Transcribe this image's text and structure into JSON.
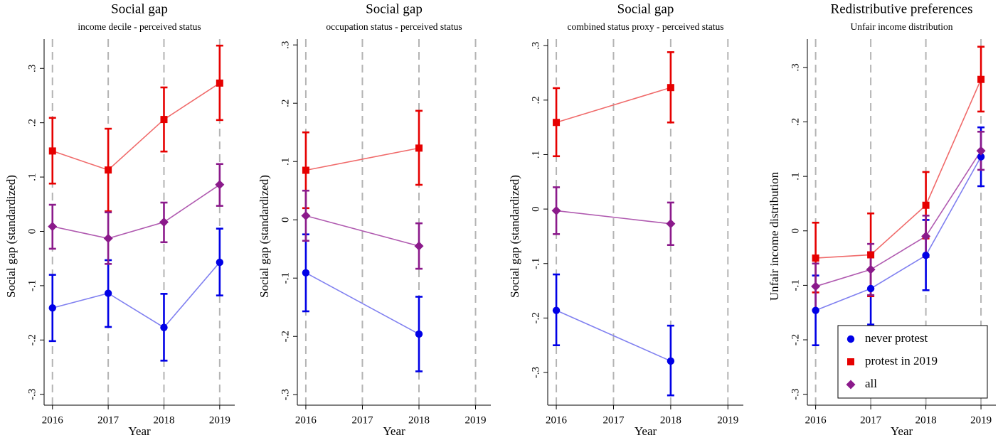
{
  "chart_data": [
    {
      "type": "line",
      "title": "Social gap",
      "subtitle": "income decile - perceived status",
      "x_label": "Year",
      "y_label": "Social gap (standardized)",
      "x": [
        2016,
        2017,
        2018,
        2019
      ],
      "series": [
        {
          "color": "#0000e6",
          "line_color": "#8080f0",
          "marker": "circle",
          "values": [
            -0.141,
            -0.114,
            -0.177,
            -0.057
          ],
          "lower": [
            -0.202,
            -0.176,
            -0.238,
            -0.118
          ],
          "upper": [
            -0.08,
            -0.053,
            -0.115,
            0.005
          ]
        },
        {
          "color": "#e60000",
          "line_color": "#f06a6a",
          "marker": "square",
          "values": [
            0.148,
            0.113,
            0.206,
            0.273
          ],
          "lower": [
            0.088,
            0.037,
            0.147,
            0.205
          ],
          "upper": [
            0.209,
            0.189,
            0.265,
            0.342
          ]
        },
        {
          "color": "#8b1a8b",
          "line_color": "#b05ab0",
          "marker": "diamond",
          "values": [
            0.009,
            -0.013,
            0.017,
            0.086
          ],
          "lower": [
            -0.032,
            -0.06,
            -0.02,
            0.047
          ],
          "upper": [
            0.049,
            0.035,
            0.053,
            0.124
          ]
        }
      ],
      "xlim": [
        2015.85,
        2019.27
      ],
      "xticks": [
        2016,
        2017,
        2018,
        2019
      ],
      "ylim": [
        -0.32,
        0.354
      ],
      "yticks": [
        {
          "value": 0.3,
          "label": ".3"
        },
        {
          "value": 0.2,
          "label": ".2"
        },
        {
          "value": 0.1,
          "label": ".1"
        },
        0,
        {
          "value": -0.1,
          "label": "-.1"
        },
        {
          "value": -0.2,
          "label": "-.2"
        },
        {
          "value": -0.3,
          "label": "-.3"
        }
      ],
      "xgrid": true
    },
    {
      "type": "line",
      "title": "Social gap",
      "subtitle": "occupation status - perceived status",
      "x_label": "Year",
      "y_label": "Social gap (standardized)",
      "x": [
        2016,
        2018
      ],
      "series": [
        {
          "color": "#0000e6",
          "line_color": "#8080f0",
          "marker": "circle",
          "values": [
            -0.091,
            -0.196
          ],
          "lower": [
            -0.157,
            -0.26
          ],
          "upper": [
            -0.025,
            -0.132
          ]
        },
        {
          "color": "#e60000",
          "line_color": "#f06a6a",
          "marker": "square",
          "values": [
            0.085,
            0.123
          ],
          "lower": [
            0.02,
            0.06
          ],
          "upper": [
            0.15,
            0.187
          ]
        },
        {
          "color": "#8b1a8b",
          "line_color": "#b05ab0",
          "marker": "diamond",
          "values": [
            0.007,
            -0.045
          ],
          "lower": [
            -0.036,
            -0.084
          ],
          "upper": [
            0.05,
            -0.006
          ]
        }
      ],
      "xlim": [
        2015.85,
        2019.27
      ],
      "xticks": [
        2016,
        2017,
        2018,
        2019
      ],
      "ylim": [
        -0.318,
        0.31
      ],
      "yticks": [
        {
          "value": 0.3,
          "label": ".3"
        },
        {
          "value": 0.2,
          "label": ".2"
        },
        {
          "value": 0.1,
          "label": ".1"
        },
        0,
        {
          "value": -0.1,
          "label": "-.1"
        },
        {
          "value": -0.2,
          "label": "-.2"
        },
        {
          "value": -0.3,
          "label": "-.3"
        }
      ],
      "xgrid": true
    },
    {
      "type": "line",
      "title": "Social gap",
      "subtitle": "combined status proxy - perceived status",
      "x_label": "Year",
      "y_label": "Social gap (standardized)",
      "x": [
        2016,
        2018
      ],
      "series": [
        {
          "color": "#0000e6",
          "line_color": "#8080f0",
          "marker": "circle",
          "values": [
            -0.186,
            -0.279
          ],
          "lower": [
            -0.25,
            -0.342
          ],
          "upper": [
            -0.12,
            -0.214
          ]
        },
        {
          "color": "#e60000",
          "line_color": "#f06a6a",
          "marker": "square",
          "values": [
            0.159,
            0.223
          ],
          "lower": [
            0.097,
            0.159
          ],
          "upper": [
            0.222,
            0.288
          ]
        },
        {
          "color": "#8b1a8b",
          "line_color": "#b05ab0",
          "marker": "diamond",
          "values": [
            -0.003,
            -0.027
          ],
          "lower": [
            -0.046,
            -0.066
          ],
          "upper": [
            0.04,
            0.012
          ]
        }
      ],
      "xlim": [
        2015.85,
        2019.27
      ],
      "xticks": [
        2016,
        2017,
        2018,
        2019
      ],
      "ylim": [
        -0.36,
        0.312
      ],
      "yticks": [
        {
          "value": 0.3,
          "label": ".3"
        },
        {
          "value": 0.2,
          "label": ".2"
        },
        {
          "value": 0.1,
          "label": ".1"
        },
        0,
        {
          "value": -0.1,
          "label": "-.1"
        },
        {
          "value": -0.2,
          "label": "-.2"
        },
        {
          "value": -0.3,
          "label": "-.3"
        }
      ],
      "xgrid": true
    },
    {
      "type": "line",
      "title": "Redistributive preferences",
      "subtitle": "Unfair income distribution",
      "x_label": "Year",
      "y_label": "Unfair income distribution",
      "x": [
        2016,
        2017,
        2018,
        2019
      ],
      "series": [
        {
          "name": "never protest",
          "color": "#0000e6",
          "line_color": "#8080f0",
          "marker": "circle",
          "values": [
            -0.146,
            -0.106,
            -0.045,
            0.136
          ],
          "lower": [
            -0.21,
            -0.172,
            -0.109,
            0.082
          ],
          "upper": [
            -0.082,
            -0.04,
            0.02,
            0.19
          ]
        },
        {
          "name": "protest in 2019",
          "color": "#e60000",
          "line_color": "#f06a6a",
          "marker": "square",
          "values": [
            -0.05,
            -0.044,
            0.047,
            0.278
          ],
          "lower": [
            -0.113,
            -0.12,
            -0.014,
            0.219
          ],
          "upper": [
            0.015,
            0.032,
            0.108,
            0.338
          ]
        },
        {
          "name": "all",
          "color": "#8b1a8b",
          "line_color": "#b05ab0",
          "marker": "diamond",
          "values": [
            -0.102,
            -0.071,
            -0.01,
            0.147
          ],
          "lower": [
            -0.145,
            -0.118,
            -0.048,
            0.112
          ],
          "upper": [
            -0.06,
            -0.024,
            0.028,
            0.182
          ]
        }
      ],
      "xlim": [
        2015.85,
        2019.27
      ],
      "xticks": [
        2016,
        2017,
        2018,
        2019
      ],
      "ylim": [
        -0.32,
        0.352
      ],
      "yticks": [
        {
          "value": 0.3,
          "label": ".3"
        },
        {
          "value": 0.2,
          "label": ".2"
        },
        {
          "value": 0.1,
          "label": ".1"
        },
        0,
        {
          "value": -0.1,
          "label": "-.1"
        },
        {
          "value": -0.2,
          "label": "-.2"
        },
        {
          "value": -0.3,
          "label": "-.3"
        }
      ],
      "xgrid": true,
      "legend": "lower right"
    }
  ]
}
